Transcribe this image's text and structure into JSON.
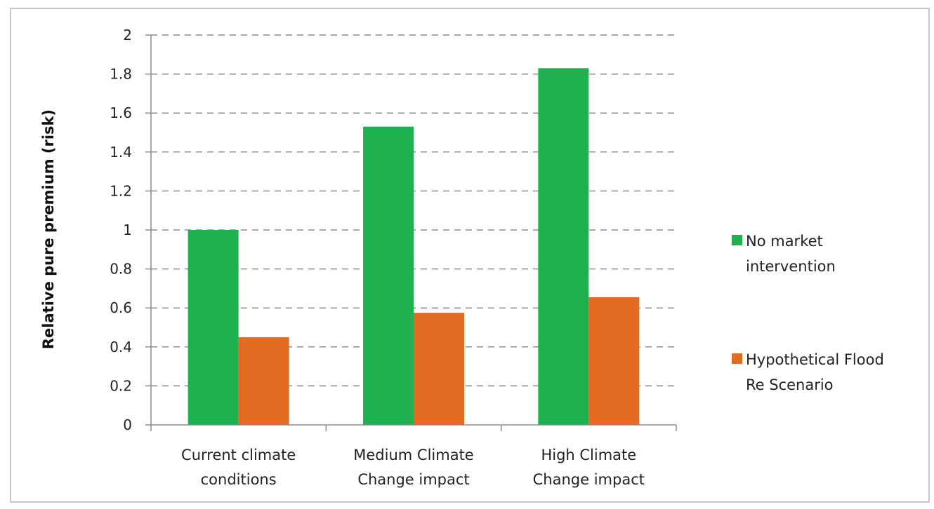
{
  "chart_data": {
    "type": "bar",
    "title": "",
    "xlabel": "",
    "ylabel": "Relative pure premium (risk)",
    "ylim": [
      0,
      2
    ],
    "yticks": [
      "0",
      "0.2",
      "0.4",
      "0.6",
      "0.8",
      "1",
      "1.2",
      "1.4",
      "1.6",
      "1.8",
      "2"
    ],
    "grid": "horizontal dashed",
    "legend_position": "right",
    "categories": [
      [
        "Current climate",
        "conditions"
      ],
      [
        "Medium Climate",
        "Change impact"
      ],
      [
        "High Climate",
        "Change impact"
      ]
    ],
    "series": [
      {
        "name": [
          "No market",
          "intervention"
        ],
        "color": "#1fb04f",
        "values": [
          1.0,
          1.53,
          1.83
        ]
      },
      {
        "name": [
          " Hypothetical Flood",
          "Re Scenario"
        ],
        "color": "#e36c22",
        "values": [
          0.45,
          0.575,
          0.655
        ]
      }
    ]
  }
}
